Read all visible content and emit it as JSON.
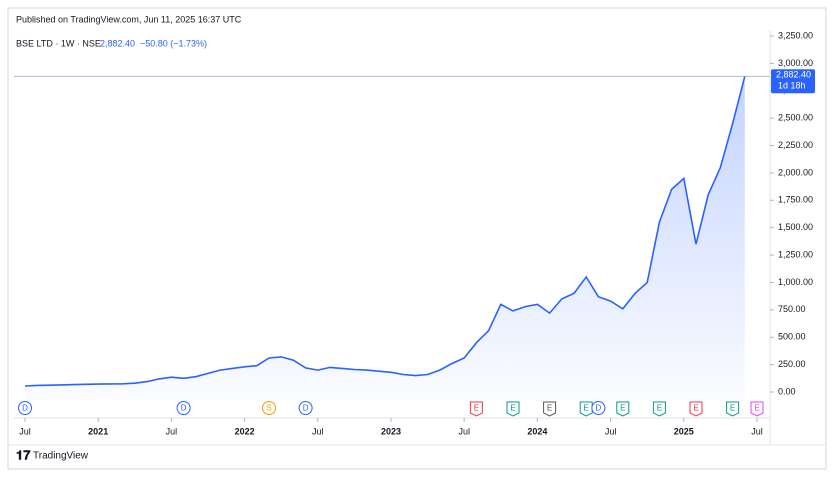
{
  "header": "Published on TradingView.com, Jun 11, 2025 16:37 UTC",
  "footer": "TradingView",
  "chart_data": {
    "type": "area",
    "legend": {
      "symbol": "BSE LTD · 1W · NSE",
      "price": "2,882.40",
      "change": "−50.80 (−1.73%)"
    },
    "last_price": {
      "value": 2882.4,
      "label": "2,882.40",
      "countdown": "1d 18h"
    },
    "x": [
      "2020-07",
      "2020-08",
      "2020-09",
      "2020-10",
      "2020-11",
      "2020-12",
      "2021-01",
      "2021-02",
      "2021-03",
      "2021-04",
      "2021-05",
      "2021-06",
      "2021-07",
      "2021-08",
      "2021-09",
      "2021-10",
      "2021-11",
      "2021-12",
      "2022-01",
      "2022-02",
      "2022-03",
      "2022-04",
      "2022-05",
      "2022-06",
      "2022-07",
      "2022-08",
      "2022-09",
      "2022-10",
      "2022-11",
      "2022-12",
      "2023-01",
      "2023-02",
      "2023-03",
      "2023-04",
      "2023-05",
      "2023-06",
      "2023-07",
      "2023-08",
      "2023-09",
      "2023-10",
      "2023-11",
      "2023-12",
      "2024-01",
      "2024-02",
      "2024-03",
      "2024-04",
      "2024-05",
      "2024-06",
      "2024-07",
      "2024-08",
      "2024-09",
      "2024-10",
      "2024-11",
      "2024-12",
      "2025-01",
      "2025-02",
      "2025-03",
      "2025-04",
      "2025-05",
      "2025-06"
    ],
    "series": [
      {
        "name": "BSE LTD",
        "color": "#2962ff",
        "values": [
          55,
          60,
          62,
          65,
          68,
          70,
          72,
          74,
          75,
          80,
          95,
          120,
          135,
          125,
          140,
          170,
          200,
          215,
          230,
          240,
          310,
          320,
          290,
          220,
          200,
          225,
          215,
          205,
          200,
          190,
          180,
          160,
          150,
          160,
          200,
          260,
          310,
          450,
          560,
          800,
          740,
          780,
          800,
          720,
          850,
          900,
          1050,
          870,
          830,
          760,
          900,
          1000,
          1550,
          1850,
          1950,
          1350,
          1800,
          2050,
          2450,
          2882.4
        ]
      }
    ],
    "ylim": [
      -80,
      3250
    ],
    "yticks": [
      {
        "value": 0,
        "label": "0.00"
      },
      {
        "value": 250,
        "label": "250.00"
      },
      {
        "value": 500,
        "label": "500.00"
      },
      {
        "value": 750,
        "label": "750.00"
      },
      {
        "value": 1000,
        "label": "1,000.00"
      },
      {
        "value": 1250,
        "label": "1,250.00"
      },
      {
        "value": 1500,
        "label": "1,500.00"
      },
      {
        "value": 1750,
        "label": "1,750.00"
      },
      {
        "value": 2000,
        "label": "2,000.00"
      },
      {
        "value": 2250,
        "label": "2,250.00"
      },
      {
        "value": 2500,
        "label": "2,500.00"
      },
      {
        "value": 2750,
        "label": "2,750.00"
      },
      {
        "value": 3000,
        "label": "3,000.00"
      },
      {
        "value": 3250,
        "label": "3,250.00"
      }
    ],
    "xticks": [
      {
        "value": "2020-07",
        "label": "Jul"
      },
      {
        "value": "2021-01",
        "label": "2021"
      },
      {
        "value": "2021-07",
        "label": "Jul"
      },
      {
        "value": "2022-01",
        "label": "2022"
      },
      {
        "value": "2022-07",
        "label": "Jul"
      },
      {
        "value": "2023-01",
        "label": "2023"
      },
      {
        "value": "2023-07",
        "label": "Jul"
      },
      {
        "value": "2024-01",
        "label": "2024"
      },
      {
        "value": "2024-07",
        "label": "Jul"
      },
      {
        "value": "2025-01",
        "label": "2025"
      },
      {
        "value": "2025-07",
        "label": "Jul"
      }
    ],
    "events": [
      {
        "date": "2020-07",
        "label": "D",
        "color": "#2962ff"
      },
      {
        "date": "2021-08",
        "label": "D",
        "color": "#2962ff"
      },
      {
        "date": "2022-03",
        "label": "S",
        "color": "#ff9800"
      },
      {
        "date": "2022-06",
        "label": "D",
        "color": "#2962ff"
      },
      {
        "date": "2023-08",
        "label": "E",
        "color": "#f23645"
      },
      {
        "date": "2023-11",
        "label": "E",
        "color": "#089981"
      },
      {
        "date": "2024-02",
        "label": "E",
        "color": "#555555"
      },
      {
        "date": "2024-05",
        "label": "E",
        "color": "#089981"
      },
      {
        "date": "2024-06",
        "label": "D",
        "color": "#2962ff"
      },
      {
        "date": "2024-08",
        "label": "E",
        "color": "#089981"
      },
      {
        "date": "2024-11",
        "label": "E",
        "color": "#089981"
      },
      {
        "date": "2025-02",
        "label": "E",
        "color": "#f23645"
      },
      {
        "date": "2025-05",
        "label": "E",
        "color": "#089981"
      },
      {
        "date": "2025-07",
        "label": "E",
        "color": "#e040fb"
      }
    ]
  }
}
